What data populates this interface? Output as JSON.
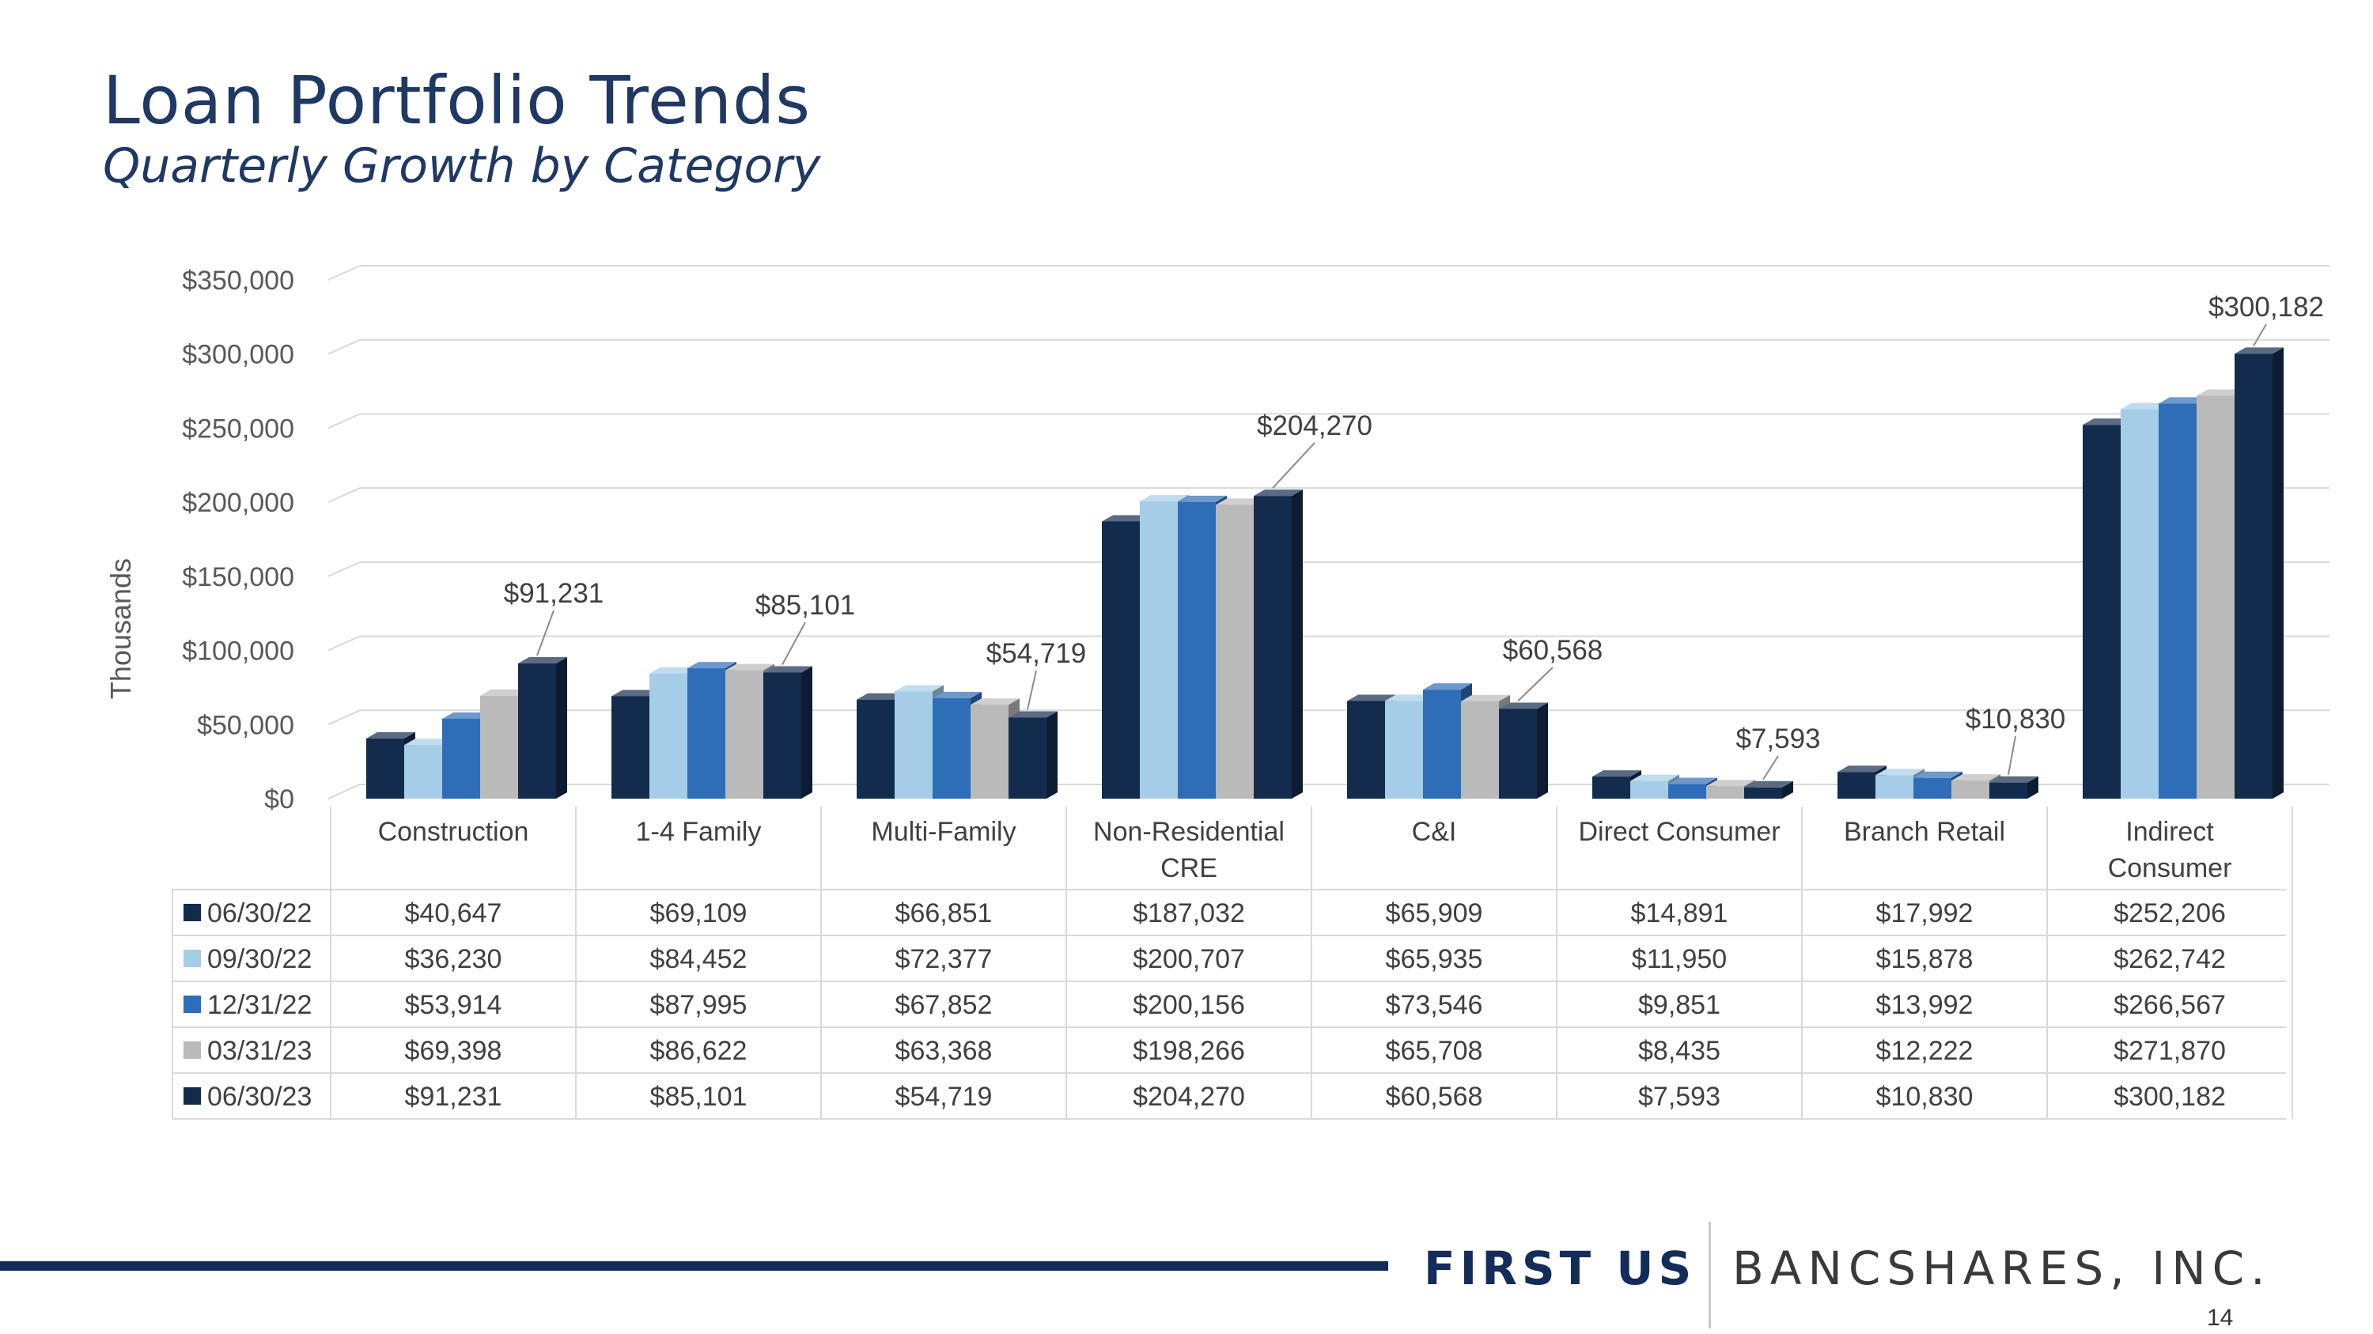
{
  "slide": {
    "title": "Loan Portfolio Trends",
    "subtitle": "Quarterly Growth by Category",
    "page_number": "14"
  },
  "logo": {
    "first": "FIRST US",
    "rest": "BANCSHARES, INC."
  },
  "colors": {
    "title": "#1f3864",
    "footer_line": "#132c5a"
  },
  "chart_data": {
    "type": "bar",
    "title": "",
    "xlabel": "",
    "ylabel": "Thousands",
    "ylim": [
      0,
      350000
    ],
    "yticks": [
      "$0",
      "$50,000",
      "$100,000",
      "$150,000",
      "$200,000",
      "$250,000",
      "$300,000",
      "$350,000"
    ],
    "grid": true,
    "legend": "data-table",
    "categories": [
      "Construction",
      "1-4 Family",
      "Multi-Family",
      "Non-Residential CRE",
      "C&I",
      "Direct Consumer",
      "Branch Retail",
      "Indirect Consumer"
    ],
    "category_lines": [
      [
        "Construction"
      ],
      [
        "1-4 Family"
      ],
      [
        "Multi-Family"
      ],
      [
        "Non-Residential",
        "CRE"
      ],
      [
        "C&I"
      ],
      [
        "Direct Consumer"
      ],
      [
        "Branch Retail"
      ],
      [
        "Indirect",
        "Consumer"
      ]
    ],
    "series": [
      {
        "name": "06/30/22",
        "color": "#132c4e",
        "values": [
          40647,
          69109,
          66851,
          187032,
          65909,
          14891,
          17992,
          252206
        ],
        "labels": [
          "$40,647",
          "$69,109",
          "$66,851",
          "$187,032",
          "$65,909",
          "$14,891",
          "$17,992",
          "$252,206"
        ]
      },
      {
        "name": "09/30/22",
        "color": "#a6cde8",
        "values": [
          36230,
          84452,
          72377,
          200707,
          65935,
          11950,
          15878,
          262742
        ],
        "labels": [
          "$36,230",
          "$84,452",
          "$72,377",
          "$200,707",
          "$65,935",
          "$11,950",
          "$15,878",
          "$262,742"
        ]
      },
      {
        "name": "12/31/22",
        "color": "#2e6db8",
        "values": [
          53914,
          87995,
          67852,
          200156,
          73546,
          9851,
          13992,
          266567
        ],
        "labels": [
          "$53,914",
          "$87,995",
          "$67,852",
          "$200,156",
          "$73,546",
          "$9,851",
          "$13,992",
          "$266,567"
        ]
      },
      {
        "name": "03/31/23",
        "color": "#bababa",
        "values": [
          69398,
          86622,
          63368,
          198266,
          65708,
          8435,
          12222,
          271870
        ],
        "labels": [
          "$69,398",
          "$86,622",
          "$63,368",
          "$198,266",
          "$65,708",
          "$8,435",
          "$12,222",
          "$271,870"
        ]
      },
      {
        "name": "06/30/23",
        "color": "#132c4e",
        "values": [
          91231,
          85101,
          54719,
          204270,
          60568,
          7593,
          10830,
          300182
        ],
        "labels": [
          "$91,231",
          "$85,101",
          "$54,719",
          "$204,270",
          "$60,568",
          "$7,593",
          "$10,830",
          "$300,182"
        ]
      }
    ],
    "annotations": [
      "$91,231",
      "$85,101",
      "$54,719",
      "$204,270",
      "$60,568",
      "$7,593",
      "$10,830",
      "$300,182"
    ]
  }
}
